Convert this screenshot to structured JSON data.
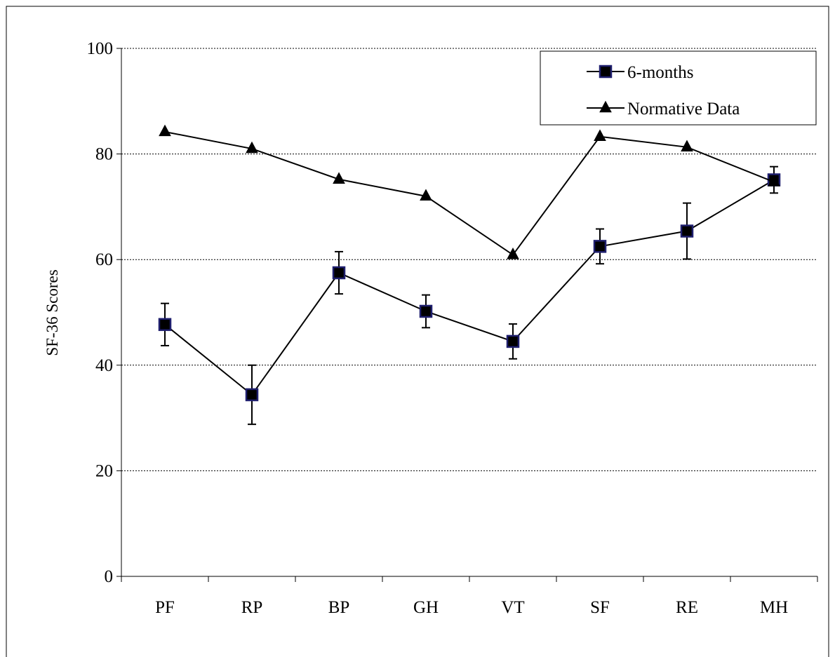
{
  "chart_data": {
    "type": "line",
    "title": "",
    "xlabel": "",
    "ylabel": "SF-36  Scores",
    "ylim": [
      0,
      100
    ],
    "yticks": [
      0,
      20,
      40,
      60,
      80,
      100
    ],
    "grid": "horizontal dotted",
    "legend_position": "top-right",
    "categories": [
      "PF",
      "RP",
      "BP",
      "GH",
      "VT",
      "SF",
      "RE",
      "MH"
    ],
    "series": [
      {
        "name": "6-months",
        "marker": "square",
        "color": "#000000",
        "marker_edge": "#1f1f6e",
        "values": [
          47.7,
          34.4,
          57.5,
          50.2,
          44.5,
          62.5,
          65.4,
          75.1
        ],
        "error": [
          4.0,
          5.6,
          4.0,
          3.1,
          3.3,
          3.3,
          5.3,
          2.5
        ]
      },
      {
        "name": "Normative Data",
        "marker": "triangle",
        "color": "#000000",
        "values": [
          84.2,
          81.0,
          75.2,
          72.0,
          60.9,
          83.3,
          81.3,
          74.7
        ]
      }
    ]
  }
}
